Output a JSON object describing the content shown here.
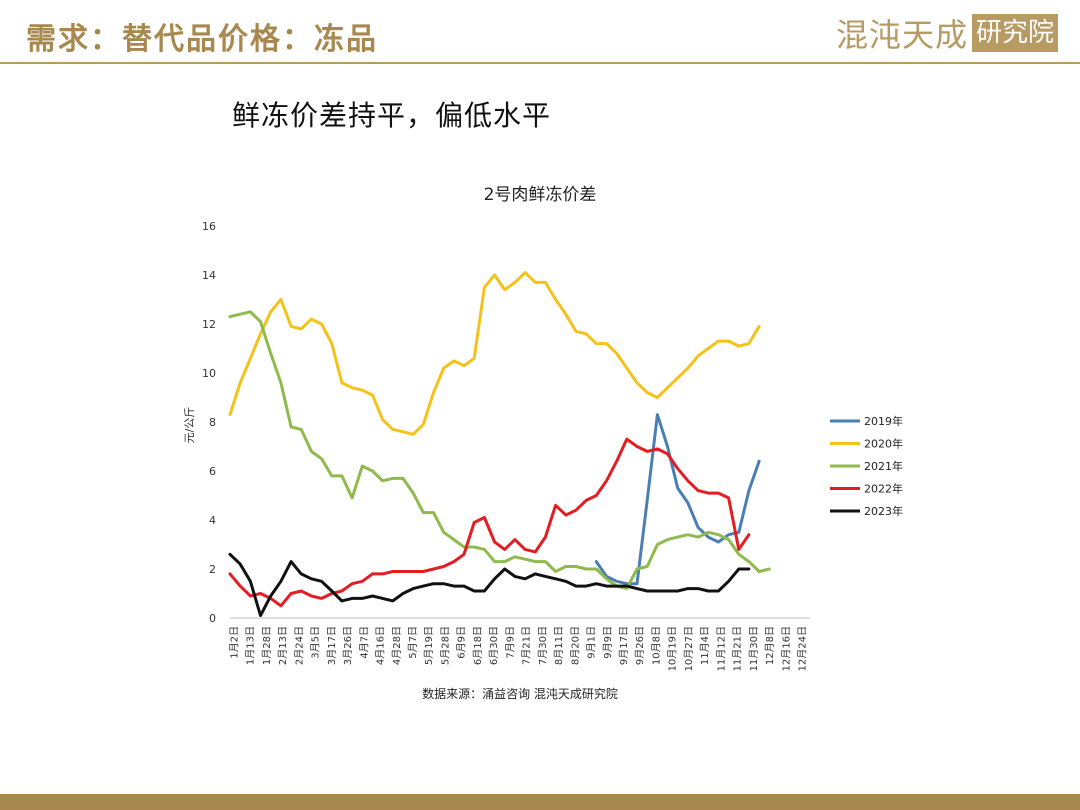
{
  "header": {
    "title": "需求：替代品价格：冻品",
    "logo_text": "混沌天成",
    "logo_box_text": "研究院"
  },
  "subtitle": "鲜冻价差持平，偏低水平",
  "colors": {
    "accent": "#a8884f",
    "series": [
      "#4a7eb5",
      "#f5c21a",
      "#8fba4c",
      "#e31e23",
      "#111111"
    ]
  },
  "chart_data": {
    "type": "line",
    "title": "2号肉鲜冻价差",
    "ylabel": "元/公斤",
    "xlabel": "",
    "ylim": [
      0,
      16
    ],
    "yticks": [
      0,
      2,
      4,
      6,
      8,
      10,
      12,
      14,
      16
    ],
    "grid": false,
    "legend_position": "right",
    "source": "数据来源：涌益咨询 混沌天成研究院",
    "x_tick_labels": [
      "1月2日",
      "1月13日",
      "1月28日",
      "2月13日",
      "2月24日",
      "3月5日",
      "3月17日",
      "3月26日",
      "4月7日",
      "4月16日",
      "4月28日",
      "5月7日",
      "5月19日",
      "5月28日",
      "6月9日",
      "6月18日",
      "6月30日",
      "7月9日",
      "7月21日",
      "7月30日",
      "8月11日",
      "8月20日",
      "9月1日",
      "9月9日",
      "9月17日",
      "9月26日",
      "10月8日",
      "10月19日",
      "10月27日",
      "11月4日",
      "11月12日",
      "11月21日",
      "11月30日",
      "12月8日",
      "12月16日",
      "12月24日"
    ],
    "n_points": 58,
    "series": [
      {
        "name": "2019年",
        "color": "#4a7eb5",
        "start": 36,
        "values": [
          2.3,
          1.7,
          1.5,
          1.4,
          1.4,
          4.8,
          8.3,
          7.0,
          5.3,
          4.7,
          3.7,
          3.3,
          3.1,
          3.4,
          3.5,
          5.2,
          6.4
        ]
      },
      {
        "name": "2020年",
        "color": "#f5c21a",
        "start": 0,
        "values": [
          8.3,
          9.6,
          10.6,
          11.6,
          12.5,
          13.0,
          11.9,
          11.8,
          12.2,
          12.0,
          11.2,
          9.6,
          9.4,
          9.3,
          9.1,
          8.1,
          7.7,
          7.6,
          7.5,
          7.9,
          9.2,
          10.2,
          10.5,
          10.3,
          10.6,
          13.5,
          14.0,
          13.4,
          13.7,
          14.1,
          13.7,
          13.7,
          13.0,
          12.4,
          11.7,
          11.6,
          11.2,
          11.2,
          10.8,
          10.2,
          9.6,
          9.2,
          9.0,
          9.4,
          9.8,
          10.2,
          10.7,
          11.0,
          11.3,
          11.3,
          11.1,
          11.2,
          11.9
        ]
      },
      {
        "name": "2021年",
        "color": "#8fba4c",
        "start": 0,
        "values": [
          12.3,
          12.4,
          12.5,
          12.1,
          10.8,
          9.6,
          7.8,
          7.7,
          6.8,
          6.5,
          5.8,
          5.8,
          4.9,
          6.2,
          6.0,
          5.6,
          5.7,
          5.7,
          5.1,
          4.3,
          4.3,
          3.5,
          3.2,
          2.9,
          2.9,
          2.8,
          2.3,
          2.3,
          2.5,
          2.4,
          2.3,
          2.3,
          1.9,
          2.1,
          2.1,
          2.0,
          2.0,
          1.6,
          1.3,
          1.2,
          2.0,
          2.1,
          3.0,
          3.2,
          3.3,
          3.4,
          3.3,
          3.5,
          3.4,
          3.2,
          2.6,
          2.3,
          1.9,
          2.0
        ]
      },
      {
        "name": "2022年",
        "color": "#e31e23",
        "start": 0,
        "values": [
          1.8,
          1.3,
          0.9,
          1.0,
          0.8,
          0.5,
          1.0,
          1.1,
          0.9,
          0.8,
          1.0,
          1.1,
          1.4,
          1.5,
          1.8,
          1.8,
          1.9,
          1.9,
          1.9,
          1.9,
          2.0,
          2.1,
          2.3,
          2.6,
          3.9,
          4.1,
          3.1,
          2.8,
          3.2,
          2.8,
          2.7,
          3.3,
          4.6,
          4.2,
          4.4,
          4.8,
          5.0,
          5.6,
          6.4,
          7.3,
          7.0,
          6.8,
          6.9,
          6.7,
          6.1,
          5.6,
          5.2,
          5.1,
          5.1,
          4.9,
          2.8,
          3.4
        ]
      },
      {
        "name": "2023年",
        "color": "#111111",
        "start": 0,
        "values": [
          2.6,
          2.2,
          1.5,
          0.1,
          0.9,
          1.5,
          2.3,
          1.8,
          1.6,
          1.5,
          1.1,
          0.7,
          0.8,
          0.8,
          0.9,
          0.8,
          0.7,
          1.0,
          1.2,
          1.3,
          1.4,
          1.4,
          1.3,
          1.3,
          1.1,
          1.1,
          1.6,
          2.0,
          1.7,
          1.6,
          1.8,
          1.7,
          1.6,
          1.5,
          1.3,
          1.3,
          1.4,
          1.3,
          1.3,
          1.3,
          1.2,
          1.1,
          1.1,
          1.1,
          1.1,
          1.2,
          1.2,
          1.1,
          1.1,
          1.5,
          2.0,
          2.0
        ]
      }
    ]
  }
}
